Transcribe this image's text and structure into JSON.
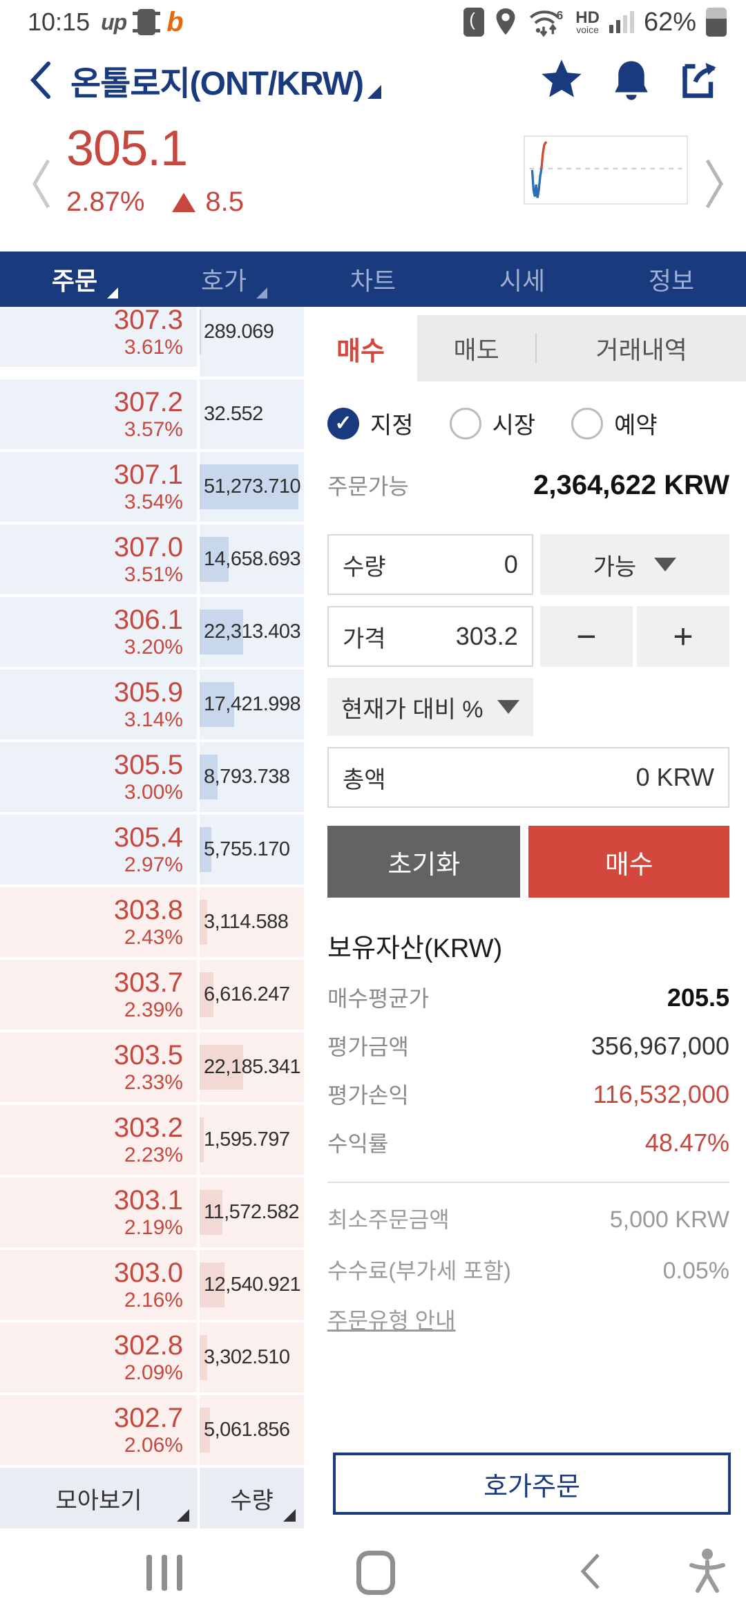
{
  "colors": {
    "navy": "#1a3a7e",
    "price_red": "#c5473e",
    "buy_button_red": "#d3473d",
    "reset_button_gray": "#636363",
    "ask_row_bg": "#edf1f8",
    "bid_row_bg": "#fcf0ee",
    "ask_depth_bar": "#c9d7ec",
    "bid_depth_bar": "#f3d9d4",
    "footer_bar_bg": "#e9edf3",
    "inactive_tab_bg": "#ebebeb",
    "field_gray_bg": "#f0f0f0"
  },
  "status": {
    "time": "10:15",
    "carrier": "up",
    "hd": "HD",
    "voice": "voice",
    "battery_pct": "62%"
  },
  "header": {
    "title": "온톨로지(ONT/KRW)"
  },
  "price": {
    "value": "305.1",
    "change_pct": "2.87%",
    "change_value": "8.5"
  },
  "sparkline": {
    "blue": "8,50 10,80 12,90 14,72 16,92 18,80 20,60 22,48",
    "red": "22,48 24,26 26,13 28,9 30,8"
  },
  "nav_tabs": [
    {
      "label": "주문"
    },
    {
      "label": "호가"
    },
    {
      "label": "차트"
    },
    {
      "label": "시세"
    },
    {
      "label": "정보"
    }
  ],
  "orderbook": {
    "rows": [
      {
        "price": "307.3",
        "pct": "3.61%",
        "qty": "289.069",
        "side": "ask",
        "depth_pct": 1
      },
      {
        "price": "307.2",
        "pct": "3.57%",
        "qty": "32.552",
        "side": "ask",
        "depth_pct": 0
      },
      {
        "price": "307.1",
        "pct": "3.54%",
        "qty": "51,273.710",
        "side": "ask",
        "depth_pct": 95
      },
      {
        "price": "307.0",
        "pct": "3.51%",
        "qty": "14,658.693",
        "side": "ask",
        "depth_pct": 28
      },
      {
        "price": "306.1",
        "pct": "3.20%",
        "qty": "22,313.403",
        "side": "ask",
        "depth_pct": 42
      },
      {
        "price": "305.9",
        "pct": "3.14%",
        "qty": "17,421.998",
        "side": "ask",
        "depth_pct": 33
      },
      {
        "price": "305.5",
        "pct": "3.00%",
        "qty": "8,793.738",
        "side": "ask",
        "depth_pct": 17
      },
      {
        "price": "305.4",
        "pct": "2.97%",
        "qty": "5,755.170",
        "side": "ask",
        "depth_pct": 11
      },
      {
        "price": "303.8",
        "pct": "2.43%",
        "qty": "3,114.588",
        "side": "bid",
        "depth_pct": 7
      },
      {
        "price": "303.7",
        "pct": "2.39%",
        "qty": "6,616.247",
        "side": "bid",
        "depth_pct": 13
      },
      {
        "price": "303.5",
        "pct": "2.33%",
        "qty": "22,185.341",
        "side": "bid",
        "depth_pct": 42
      },
      {
        "price": "303.2",
        "pct": "2.23%",
        "qty": "1,595.797",
        "side": "bid",
        "depth_pct": 4
      },
      {
        "price": "303.1",
        "pct": "2.19%",
        "qty": "11,572.582",
        "side": "bid",
        "depth_pct": 22
      },
      {
        "price": "303.0",
        "pct": "2.16%",
        "qty": "12,540.921",
        "side": "bid",
        "depth_pct": 24
      },
      {
        "price": "302.8",
        "pct": "2.09%",
        "qty": "3,302.510",
        "side": "bid",
        "depth_pct": 7
      },
      {
        "price": "302.7",
        "pct": "2.06%",
        "qty": "5,061.856",
        "side": "bid",
        "depth_pct": 10
      }
    ],
    "footer": {
      "group_label": "모아보기",
      "qty_label": "수량"
    }
  },
  "panel": {
    "tabs": {
      "buy": "매수",
      "sell": "매도",
      "history": "거래내역"
    },
    "order_types": [
      {
        "label": "지정",
        "checked": true
      },
      {
        "label": "시장",
        "checked": false
      },
      {
        "label": "예약",
        "checked": false
      }
    ],
    "available": {
      "label": "주문가능",
      "value": "2,364,622 KRW"
    },
    "qty_field": {
      "label": "수량",
      "value": "0"
    },
    "qty_unit_dropdown": "가능",
    "price_field": {
      "label": "가격",
      "value": "303.2"
    },
    "minus": "−",
    "plus": "+",
    "pct_dropdown": "현재가 대비 %",
    "total_field": {
      "label": "총액",
      "value": "0 KRW"
    },
    "reset_button": "초기화",
    "buy_button": "매수",
    "assets": {
      "title": "보유자산(KRW)",
      "rows": [
        {
          "label": "매수평균가",
          "value": "205.5"
        },
        {
          "label": "평가금액",
          "value": "356,967,000"
        },
        {
          "label": "평가손익",
          "value": "116,532,000"
        },
        {
          "label": "수익률",
          "value": "48.47%"
        }
      ]
    },
    "info": {
      "rows": [
        {
          "label": "최소주문금액",
          "value": "5,000 KRW"
        },
        {
          "label": "수수료(부가세 포함)",
          "value": "0.05%"
        }
      ],
      "link": "주문유형 안내"
    },
    "quote_order_button": "호가주문"
  }
}
